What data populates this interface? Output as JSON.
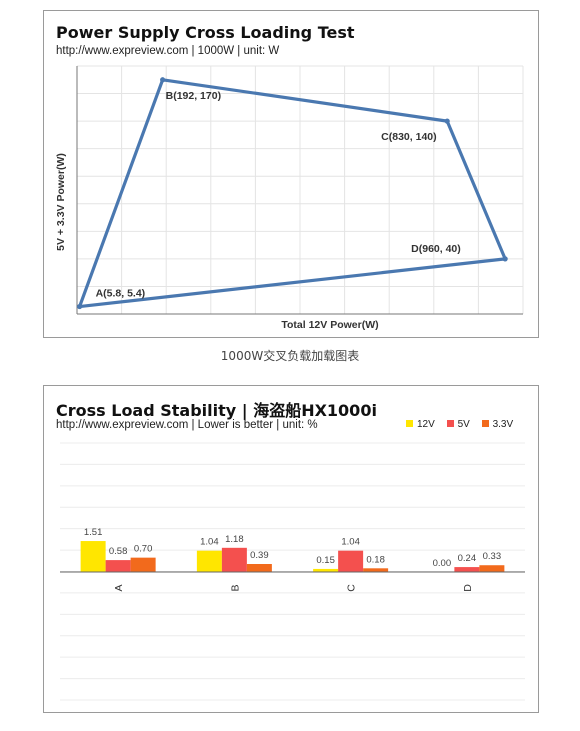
{
  "colors": {
    "line": "#4a78b0",
    "c12v": "#ffe600",
    "c5v": "#f4504e",
    "c33v": "#f26a1c",
    "grid": "#e4e4e4",
    "axis": "#777777"
  },
  "panel1": {
    "title": "Power Supply Cross Loading Test",
    "subtitle": "http://www.expreview.com | 1000W | unit: W"
  },
  "caption1": "1000W交叉负载加载图表",
  "panel2": {
    "title": "Cross Load Stability | 海盗船HX1000i",
    "subtitle": "http://www.expreview.com | Lower is better | unit: %",
    "legend": [
      {
        "name": "12V",
        "color": "#ffe600"
      },
      {
        "name": "5V",
        "color": "#f4504e"
      },
      {
        "name": "3.3V",
        "color": "#f26a1c"
      }
    ]
  },
  "chart_data": [
    {
      "type": "line",
      "title": "Power Supply Cross Loading Test",
      "xlabel": "Total 12V Power(W)",
      "ylabel": "5V + 3.3V Power(W)",
      "xlim": [
        0,
        1000
      ],
      "ylim": [
        0,
        180
      ],
      "grid": true,
      "points": [
        {
          "label": "A(5.8, 5.4)",
          "x": 5.8,
          "y": 5.4
        },
        {
          "label": "B(192, 170)",
          "x": 192,
          "y": 170
        },
        {
          "label": "C(830, 140)",
          "x": 830,
          "y": 140
        },
        {
          "label": "D(960, 40)",
          "x": 960,
          "y": 40
        }
      ]
    },
    {
      "type": "bar",
      "title": "Cross Load Stability | 海盗船HX1000i",
      "categories": [
        "A",
        "B",
        "C",
        "D"
      ],
      "ylim": [
        0,
        8
      ],
      "grid": true,
      "legend": "top-right",
      "series": [
        {
          "name": "12V",
          "values": [
            1.51,
            1.04,
            0.15,
            0.0
          ],
          "labels": [
            "1.51",
            "1.04",
            "0.15",
            "0.00"
          ]
        },
        {
          "name": "5V",
          "values": [
            0.58,
            1.18,
            1.04,
            0.24
          ],
          "labels": [
            "0.58",
            "1.18",
            "1.04",
            "0.24"
          ]
        },
        {
          "name": "3.3V",
          "values": [
            0.7,
            0.39,
            0.18,
            0.33
          ],
          "labels": [
            "0.70",
            "0.39",
            "0.18",
            "0.33"
          ]
        }
      ]
    }
  ]
}
